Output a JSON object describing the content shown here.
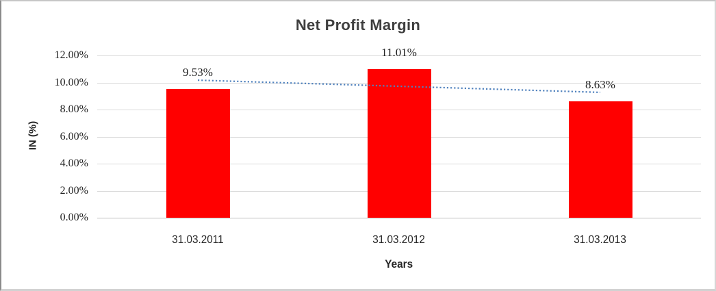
{
  "chart_data": {
    "type": "bar",
    "title": "Net Profit Margin",
    "xlabel": "Years",
    "ylabel": "IN (%)",
    "categories": [
      "31.03.2011",
      "31.03.2012",
      "31.03.2013"
    ],
    "values": [
      9.53,
      11.01,
      8.63
    ],
    "data_labels": [
      "9.53%",
      "11.01%",
      "8.63%"
    ],
    "yticks_top_to_bottom": [
      "12.00%",
      "10.00%",
      "8.00%",
      "6.00%",
      "4.00%",
      "2.00%",
      "0.00%"
    ],
    "ylim": [
      0,
      12
    ],
    "grid": true,
    "legend": "none",
    "bar_color": "#ff0000",
    "gridline_color": "#d9d9d9",
    "axis_line_color": "#bfbfbf",
    "title_color": "#3f3f3f",
    "label_color": "#1f1f1f",
    "trendline": {
      "type": "linear",
      "style": "dotted",
      "color": "#4f81bd",
      "values_pct": [
        10.17,
        9.72,
        9.27
      ]
    }
  }
}
